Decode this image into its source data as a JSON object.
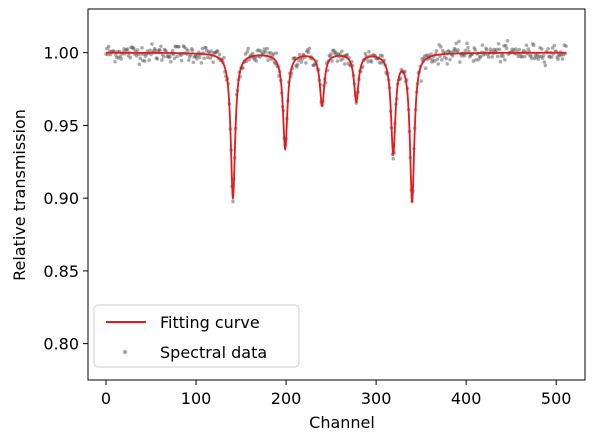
{
  "chart_data": {
    "type": "scatter",
    "title": "",
    "xlabel": "Channel",
    "ylabel": "Relative transmission",
    "xlim": [
      -20,
      532
    ],
    "ylim": [
      0.775,
      1.03
    ],
    "xticks": [
      0,
      100,
      200,
      300,
      400,
      500
    ],
    "yticks": [
      0.8,
      0.85,
      0.9,
      0.95,
      1.0
    ],
    "xtick_labels": [
      "0",
      "100",
      "200",
      "300",
      "400",
      "500"
    ],
    "ytick_labels": [
      "0.80",
      "0.85",
      "0.90",
      "0.95",
      "1.00"
    ],
    "grid": false,
    "legend_position": "lower-left",
    "series": [
      {
        "name": "Fitting curve",
        "kind": "line",
        "color": "#e41a1c",
        "baseline": 1.0,
        "x_range": [
          0,
          511
        ],
        "dips": [
          {
            "center": 141,
            "depth": 0.1,
            "width": 3.0
          },
          {
            "center": 199,
            "depth": 0.066,
            "width": 3.0
          },
          {
            "center": 240,
            "depth": 0.036,
            "width": 3.0
          },
          {
            "center": 278,
            "depth": 0.033,
            "width": 3.0
          },
          {
            "center": 319,
            "depth": 0.068,
            "width": 3.0
          },
          {
            "center": 340,
            "depth": 0.101,
            "width": 3.0
          }
        ]
      },
      {
        "name": "Spectral data",
        "kind": "scatter",
        "color": "#555555",
        "n_points": 512,
        "noise": 0.003
      }
    ]
  }
}
